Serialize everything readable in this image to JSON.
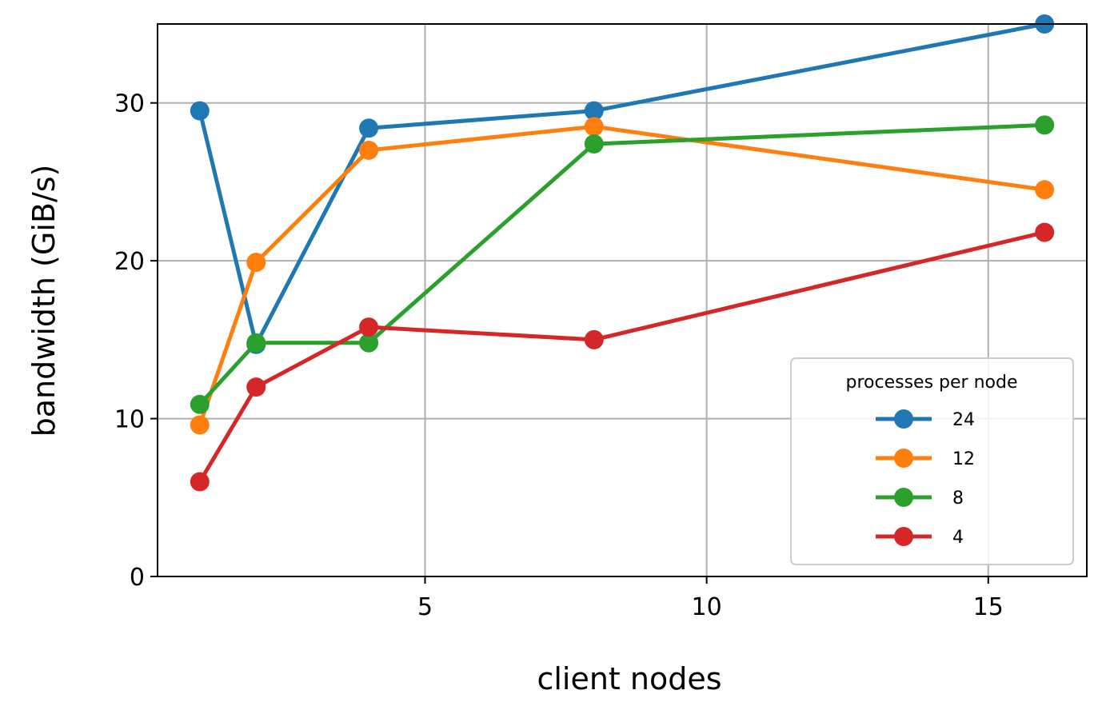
{
  "chart_data": {
    "type": "line",
    "xlabel": "client nodes",
    "ylabel": "bandwidth (GiB/s)",
    "xlim": [
      0.25,
      16.75
    ],
    "ylim": [
      0,
      35
    ],
    "xticks": [
      5,
      10,
      15
    ],
    "yticks": [
      0,
      10,
      20,
      30
    ],
    "x": [
      1,
      2,
      4,
      8,
      16
    ],
    "grid": true,
    "legend": {
      "title": "processes per node",
      "placement": "lower right"
    },
    "series": [
      {
        "name": "24",
        "color": "#1f77b4",
        "values": [
          29.5,
          14.7,
          28.4,
          29.5,
          35.0
        ]
      },
      {
        "name": "12",
        "color": "#ff7f0e",
        "values": [
          9.6,
          19.9,
          27.0,
          28.5,
          24.5
        ]
      },
      {
        "name": "8",
        "color": "#2ca02c",
        "values": [
          10.9,
          14.8,
          14.8,
          27.4,
          28.6
        ]
      },
      {
        "name": "4",
        "color": "#d62728",
        "values": [
          6.0,
          12.0,
          15.8,
          15.0,
          21.8
        ]
      }
    ]
  }
}
